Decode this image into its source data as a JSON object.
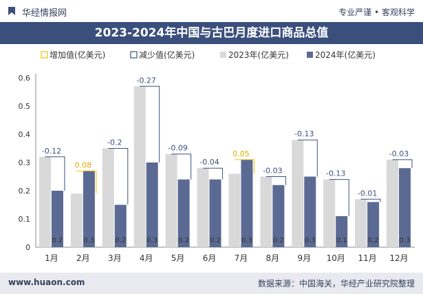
{
  "header": {
    "brand": "华经情报网",
    "slogan": "专业严谨 • 客观科学",
    "logo_icon": "bookmark-logo-icon"
  },
  "footer": {
    "url": "www.huaon.com",
    "source": "数据来源：中国海关，华经产业研究院整理"
  },
  "colors": {
    "header_bg": "#3b4f7c",
    "bar_2023": "#d9d9d9",
    "bar_2024": "#5a6a93",
    "increase": "#f2c100",
    "decrease": "#3b4f7c",
    "footer_bg": "#e8eaf0"
  },
  "chart_data": {
    "type": "bar",
    "title": "2023-2024年中国与古巴月度进口商品总值",
    "categories": [
      "1月",
      "2月",
      "3月",
      "4月",
      "5月",
      "6月",
      "7月",
      "8月",
      "9月",
      "10月",
      "11月",
      "12月"
    ],
    "series": [
      {
        "name": "2023年(亿美元)",
        "values": [
          0.32,
          0.19,
          0.35,
          0.57,
          0.33,
          0.28,
          0.26,
          0.25,
          0.38,
          0.24,
          0.17,
          0.31
        ]
      },
      {
        "name": "2024年(亿美元)",
        "values": [
          0.2,
          0.27,
          0.15,
          0.3,
          0.24,
          0.24,
          0.31,
          0.22,
          0.25,
          0.11,
          0.16,
          0.28
        ]
      }
    ],
    "difference_legend": {
      "increase": "增加值(亿美元)",
      "decrease": "减少值(亿美元)"
    },
    "differences": [
      "-0.12",
      "0.08",
      "-0.2",
      "-0.27",
      "-0.09",
      "-0.04",
      "0.05",
      "-0.03",
      "-0.13",
      "-0.13",
      "-0.01",
      "-0.03"
    ],
    "bar_labels_2024": [
      "0.2",
      "0.3",
      "0.2",
      "0.3",
      "0.2",
      "0.2",
      "0.3",
      "0.2",
      "0.3",
      "0.1",
      "0.2",
      "0.3"
    ],
    "ylim": [
      0,
      0.6
    ],
    "yticks": [
      "0",
      "0.1",
      "0.2",
      "0.3",
      "0.4",
      "0.5",
      "0.6"
    ],
    "legend_position": "top-left",
    "grid": false
  }
}
